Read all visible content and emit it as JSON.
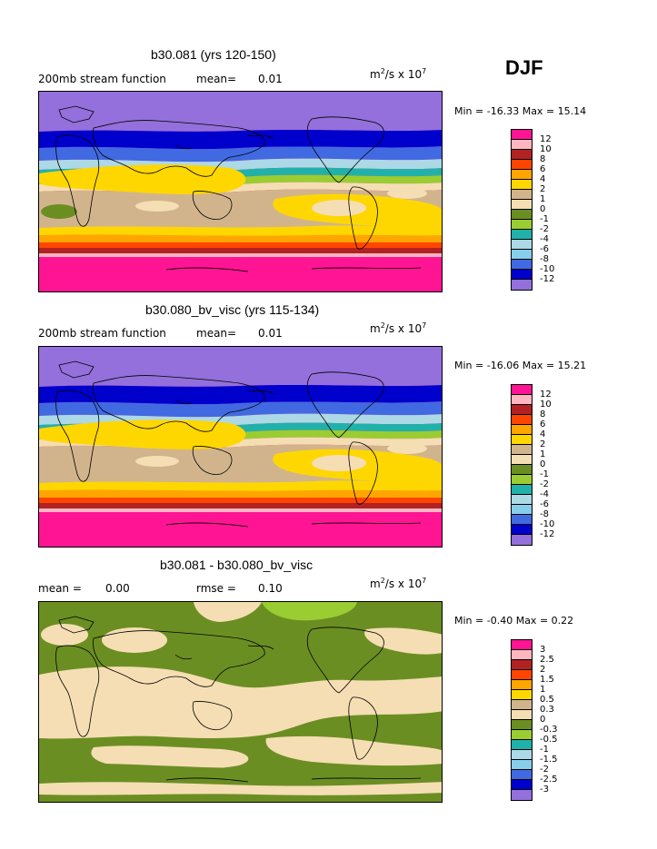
{
  "season": "DJF",
  "palette": {
    "p12": "#ff1493",
    "p10": "#ffb6c1",
    "p8": "#b22222",
    "p6": "#ff4500",
    "p4": "#ffa500",
    "p2": "#ffd700",
    "p1": "#d2b48c",
    "p0": "#f5deb3",
    "n1": "#6b8e23",
    "n2": "#9acd32",
    "n4": "#20b2aa",
    "n6": "#add8e6",
    "n8": "#87ceeb",
    "n10": "#4169e1",
    "n12": "#0000cd",
    "nmin": "#9370db"
  },
  "panels": [
    {
      "title": "b30.081 (yrs 120-150)",
      "left_text": "200mb stream function",
      "mean_label": "mean=",
      "mean_value": "0.01",
      "units": "m",
      "units_rest": "/s x 10",
      "min_label": "Min = ",
      "min_value": "-16.33",
      "max_label": "Max = ",
      "max_value": "15.14",
      "legend_labels": [
        "12",
        "10",
        "8",
        "6",
        "4",
        "2",
        "1",
        "0",
        "-1",
        "-2",
        "-4",
        "-6",
        "-8",
        "-10",
        "-12"
      ]
    },
    {
      "title": "b30.080_bv_visc (yrs 115-134)",
      "left_text": "200mb stream function",
      "mean_label": "mean=",
      "mean_value": "0.01",
      "units": "m",
      "units_rest": "/s x 10",
      "min_label": "Min = ",
      "min_value": "-16.06",
      "max_label": "Max = ",
      "max_value": "15.21",
      "legend_labels": [
        "12",
        "10",
        "8",
        "6",
        "4",
        "2",
        "1",
        "0",
        "-1",
        "-2",
        "-4",
        "-6",
        "-8",
        "-10",
        "-12"
      ]
    },
    {
      "title": "b30.081 - b30.080_bv_visc",
      "left_text": "mean =",
      "mean_value": "0.00",
      "rmse_label": "rmse =",
      "rmse_value": "0.10",
      "units": "m",
      "units_rest": "/s x 10",
      "min_label": "Min = ",
      "min_value": "-0.40",
      "max_label": "Max = ",
      "max_value": "0.22",
      "legend_labels": [
        "3",
        "2.5",
        "2",
        "1.5",
        "1",
        "0.5",
        "0.3",
        "0",
        "-0.3",
        "-0.5",
        "-1",
        "-1.5",
        "-2",
        "-2.5",
        "-3"
      ]
    }
  ]
}
